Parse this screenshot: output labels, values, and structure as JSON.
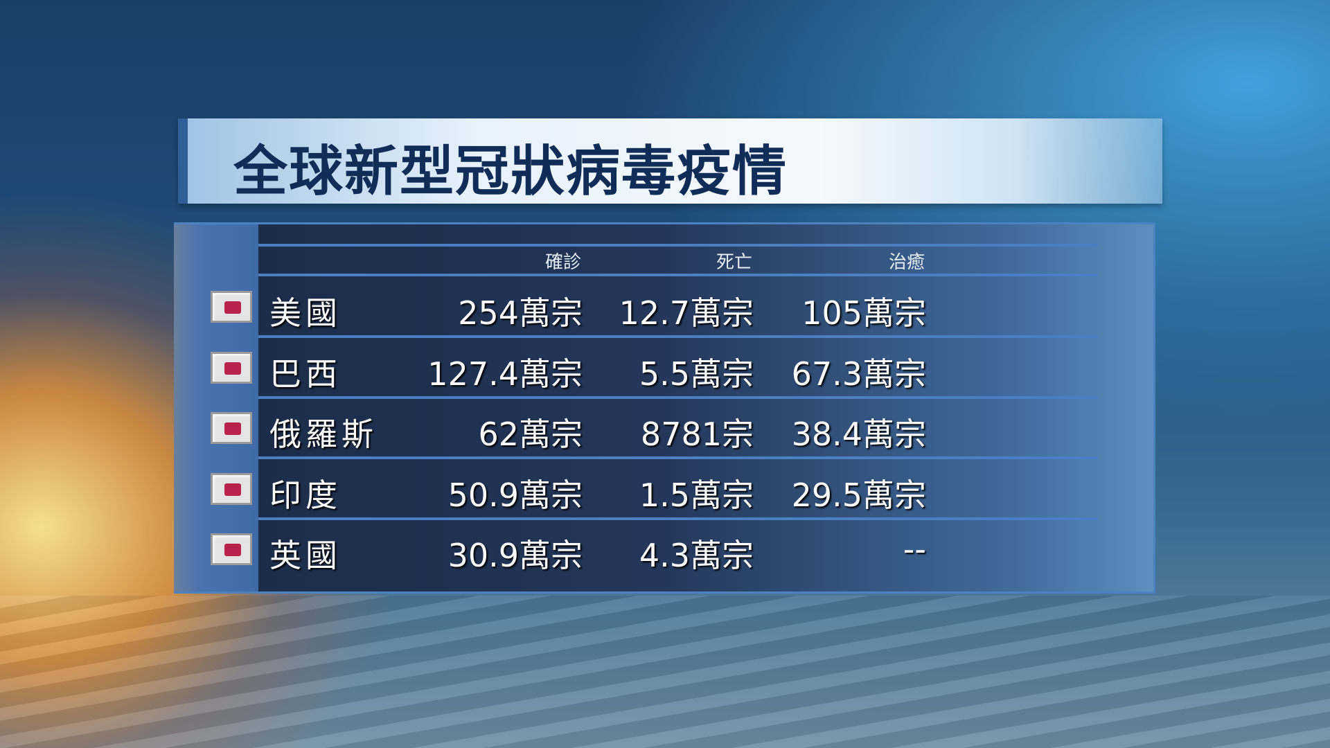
{
  "title": "全球新型冠狀病毒疫情",
  "headers": {
    "confirmed": "確診",
    "deaths": "死亡",
    "recovered": "治癒"
  },
  "rows": [
    {
      "country": "美國",
      "confirmed": "254萬宗",
      "deaths": "12.7萬宗",
      "recovered": "105萬宗"
    },
    {
      "country": "巴西",
      "confirmed": "127.4萬宗",
      "deaths": "5.5萬宗",
      "recovered": "67.3萬宗"
    },
    {
      "country": "俄羅斯",
      "confirmed": "62萬宗",
      "deaths": "8781宗",
      "recovered": "38.4萬宗"
    },
    {
      "country": "印度",
      "confirmed": "50.9萬宗",
      "deaths": "1.5萬宗",
      "recovered": "29.5萬宗"
    },
    {
      "country": "英國",
      "confirmed": "30.9萬宗",
      "deaths": "4.3萬宗",
      "recovered": "--"
    }
  ],
  "colors": {
    "title": "#102c57",
    "flag_marker": "#b8234e",
    "accent": "#4c7ec2"
  }
}
